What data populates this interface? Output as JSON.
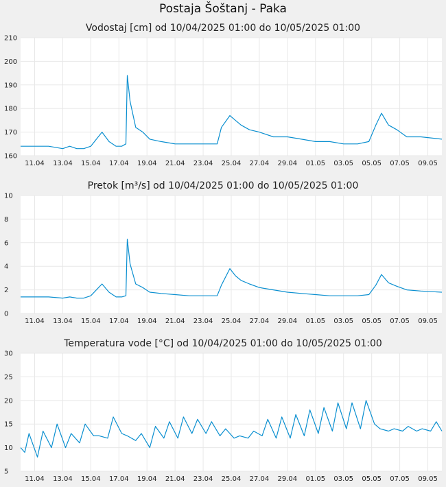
{
  "page": {
    "title": "Postaja Šoštanj - Paka"
  },
  "colors": {
    "background": "#f0f0f0",
    "plot_bg": "#ffffff",
    "grid": "#e8e8e8",
    "line": "#0a8fd0"
  },
  "chart_data": [
    {
      "type": "line",
      "title": "Vodostaj [cm] od 10/04/2025 01:00 do 10/05/2025 01:00",
      "ylim": [
        160,
        210
      ],
      "yticks": [
        160,
        170,
        180,
        190,
        200,
        210
      ],
      "xlim": [
        "2025-04-10",
        "2025-05-10"
      ],
      "xtick_labels": [
        "11.04",
        "13.04",
        "15.04",
        "17.04",
        "19.04",
        "21.04",
        "23.04",
        "25.04",
        "27.04",
        "29.04",
        "01.05",
        "03.05",
        "05.05",
        "07.05",
        "09.05"
      ],
      "grid": true,
      "series": [
        {
          "x": [
            "2025-04-10",
            "2025-04-10.5",
            "2025-04-11",
            "2025-04-12",
            "2025-04-13",
            "2025-04-13.5",
            "2025-04-14",
            "2025-04-14.5",
            "2025-04-15",
            "2025-04-15.4",
            "2025-04-15.8",
            "2025-04-16.3",
            "2025-04-16.8",
            "2025-04-17.2",
            "2025-04-17.5",
            "2025-04-17.6",
            "2025-04-17.8",
            "2025-04-18.2",
            "2025-04-18.7",
            "2025-04-19.2",
            "2025-04-20",
            "2025-04-21",
            "2025-04-22",
            "2025-04-23",
            "2025-04-24",
            "2025-04-24.3",
            "2025-04-24.9",
            "2025-04-25.3",
            "2025-04-25.7",
            "2025-04-26.3",
            "2025-04-27",
            "2025-04-28",
            "2025-04-29",
            "2025-04-30",
            "2025-05-01",
            "2025-05-02",
            "2025-05-03",
            "2025-05-04",
            "2025-05-04.8",
            "2025-05-05.3",
            "2025-05-05.7",
            "2025-05-06.2",
            "2025-05-06.8",
            "2025-05-07.5",
            "2025-05-08.5",
            "2025-05-10"
          ],
          "y": [
            164,
            164,
            164,
            164,
            163,
            164,
            163,
            163,
            164,
            167,
            170,
            166,
            164,
            164,
            165,
            194,
            183,
            172,
            170,
            167,
            166,
            165,
            165,
            165,
            165,
            172,
            177,
            175,
            173,
            171,
            170,
            168,
            168,
            167,
            166,
            166,
            165,
            165,
            166,
            173,
            178,
            173,
            171,
            168,
            168,
            167
          ]
        }
      ]
    },
    {
      "type": "line",
      "title": "Pretok [m³/s] od 10/04/2025 01:00 do 10/05/2025 01:00",
      "ylim": [
        0,
        10
      ],
      "yticks": [
        0,
        2,
        4,
        6,
        8,
        10
      ],
      "xlim": [
        "2025-04-10",
        "2025-05-10"
      ],
      "xtick_labels": [
        "11.04",
        "13.04",
        "15.04",
        "17.04",
        "19.04",
        "21.04",
        "23.04",
        "25.04",
        "27.04",
        "29.04",
        "01.05",
        "03.05",
        "05.05",
        "07.05",
        "09.05"
      ],
      "grid": true,
      "series": [
        {
          "x": [
            "2025-04-10",
            "2025-04-10.5",
            "2025-04-11",
            "2025-04-12",
            "2025-04-13",
            "2025-04-13.5",
            "2025-04-14",
            "2025-04-14.5",
            "2025-04-15",
            "2025-04-15.4",
            "2025-04-15.8",
            "2025-04-16.3",
            "2025-04-16.8",
            "2025-04-17.2",
            "2025-04-17.5",
            "2025-04-17.6",
            "2025-04-17.8",
            "2025-04-18.2",
            "2025-04-18.7",
            "2025-04-19.2",
            "2025-04-20",
            "2025-04-21",
            "2025-04-22",
            "2025-04-23",
            "2025-04-24",
            "2025-04-24.3",
            "2025-04-24.9",
            "2025-04-25.3",
            "2025-04-25.7",
            "2025-04-26.3",
            "2025-04-27",
            "2025-04-28",
            "2025-04-29",
            "2025-04-30",
            "2025-05-01",
            "2025-05-02",
            "2025-05-03",
            "2025-05-04",
            "2025-05-04.8",
            "2025-05-05.3",
            "2025-05-05.7",
            "2025-05-06.2",
            "2025-05-06.8",
            "2025-05-07.5",
            "2025-05-08.5",
            "2025-05-10"
          ],
          "y": [
            1.4,
            1.4,
            1.4,
            1.4,
            1.3,
            1.4,
            1.3,
            1.3,
            1.5,
            2.0,
            2.5,
            1.8,
            1.4,
            1.4,
            1.5,
            6.3,
            4.2,
            2.5,
            2.2,
            1.8,
            1.7,
            1.6,
            1.5,
            1.5,
            1.5,
            2.4,
            3.8,
            3.2,
            2.8,
            2.5,
            2.2,
            2.0,
            1.8,
            1.7,
            1.6,
            1.5,
            1.5,
            1.5,
            1.6,
            2.4,
            3.3,
            2.6,
            2.3,
            2.0,
            1.9,
            1.8
          ]
        }
      ]
    },
    {
      "type": "line",
      "title": "Temperatura vode [°C] od 10/04/2025 01:00 do 10/05/2025 01:00",
      "ylim": [
        5,
        30
      ],
      "yticks": [
        5,
        10,
        15,
        20,
        25,
        30
      ],
      "xlim": [
        "2025-04-10",
        "2025-05-10"
      ],
      "xtick_labels": [
        "11.04",
        "13.04",
        "15.04",
        "17.04",
        "19.04",
        "21.04",
        "23.04",
        "25.04",
        "27.04",
        "29.04",
        "01.05",
        "03.05",
        "05.05",
        "07.05",
        "09.05"
      ],
      "grid": true,
      "series": [
        {
          "x": [
            "2025-04-10",
            "2025-04-10.3",
            "2025-04-10.6",
            "2025-04-11.2",
            "2025-04-11.6",
            "2025-04-12.2",
            "2025-04-12.6",
            "2025-04-13.2",
            "2025-04-13.6",
            "2025-04-14.2",
            "2025-04-14.6",
            "2025-04-15.2",
            "2025-04-15.6",
            "2025-04-16.2",
            "2025-04-16.6",
            "2025-04-17.2",
            "2025-04-17.6",
            "2025-04-18.2",
            "2025-04-18.6",
            "2025-04-19.2",
            "2025-04-19.6",
            "2025-04-20.2",
            "2025-04-20.6",
            "2025-04-21.2",
            "2025-04-21.6",
            "2025-04-22.2",
            "2025-04-22.6",
            "2025-04-23.2",
            "2025-04-23.6",
            "2025-04-24.2",
            "2025-04-24.6",
            "2025-04-25.2",
            "2025-04-25.6",
            "2025-04-26.2",
            "2025-04-26.6",
            "2025-04-27.2",
            "2025-04-27.6",
            "2025-04-28.2",
            "2025-04-28.6",
            "2025-04-29.2",
            "2025-04-29.6",
            "2025-04-30.2",
            "2025-04-30.6",
            "2025-05-01.2",
            "2025-05-01.6",
            "2025-05-02.2",
            "2025-05-02.6",
            "2025-05-03.2",
            "2025-05-03.6",
            "2025-05-04.2",
            "2025-05-04.6",
            "2025-05-05.2",
            "2025-05-05.6",
            "2025-05-06.2",
            "2025-05-06.6",
            "2025-05-07.2",
            "2025-05-07.6",
            "2025-05-08.2",
            "2025-05-08.6",
            "2025-05-09.2",
            "2025-05-09.6",
            "2025-05-10"
          ],
          "y": [
            10,
            9,
            13,
            8,
            13.5,
            10,
            15,
            10,
            13,
            11,
            15,
            12.5,
            12.5,
            12,
            16.5,
            13,
            12.5,
            11.5,
            13,
            10,
            14.5,
            12,
            15.5,
            12,
            16.5,
            13,
            16,
            13,
            15.5,
            12.5,
            14,
            12,
            12.5,
            12,
            13.5,
            12.5,
            16,
            12,
            16.5,
            12,
            17,
            12.5,
            18,
            13,
            18.5,
            13.5,
            19.5,
            14,
            19.5,
            14,
            20,
            15,
            14,
            13.5,
            14,
            13.5,
            14.5,
            13.5,
            14,
            13.5,
            15.5,
            13.5
          ]
        }
      ]
    }
  ]
}
